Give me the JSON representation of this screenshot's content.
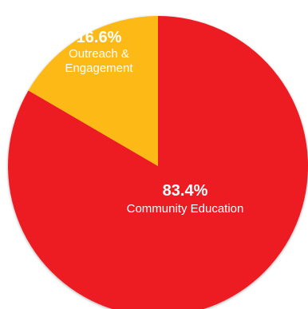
{
  "chart_data": {
    "type": "pie",
    "slices": [
      {
        "label": "Community Education",
        "value": 83.4,
        "percent_label": "83.4%",
        "color": "#ED1C24"
      },
      {
        "label": "Outreach & Engagement",
        "value": 16.6,
        "percent_label": "16.6%",
        "color": "#FDB913"
      }
    ],
    "start_angle": "12 o'clock",
    "direction": "clockwise",
    "label_color": "#FFFFFF"
  }
}
